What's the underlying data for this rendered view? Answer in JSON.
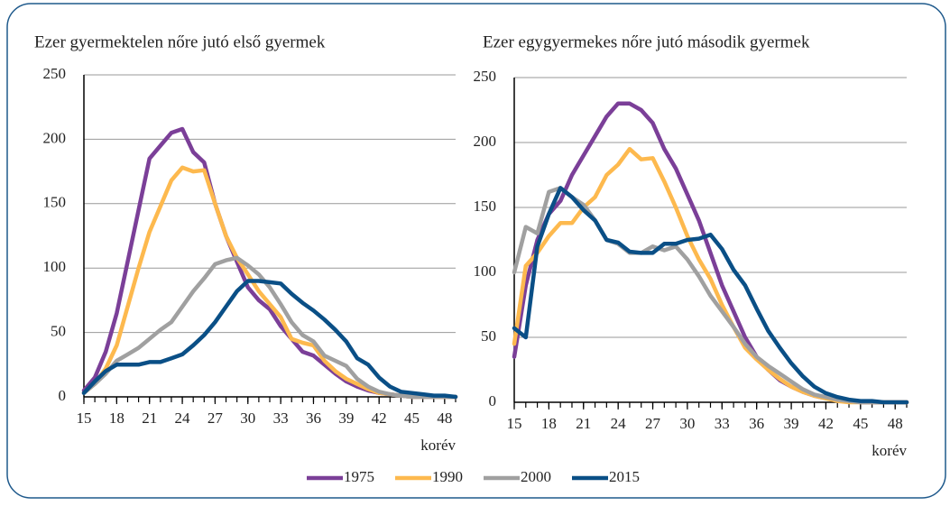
{
  "chart_data": [
    {
      "type": "line",
      "title": "Ezer gyermektelen nőre jutó első gyermek",
      "x_label": "korév",
      "x": [
        15,
        16,
        17,
        18,
        19,
        20,
        21,
        22,
        23,
        24,
        25,
        26,
        27,
        28,
        29,
        30,
        31,
        32,
        33,
        34,
        35,
        36,
        37,
        38,
        39,
        40,
        41,
        42,
        43,
        44,
        45,
        46,
        47,
        48,
        49
      ],
      "xlim": [
        15,
        49
      ],
      "xticks": [
        15,
        18,
        21,
        24,
        27,
        30,
        33,
        36,
        39,
        42,
        45,
        48
      ],
      "ylim": [
        0,
        250
      ],
      "yticks": [
        0,
        50,
        100,
        150,
        200,
        250
      ],
      "grid": true,
      "series": [
        {
          "name": "1975",
          "color": "#7b3f98",
          "values": [
            5,
            15,
            35,
            65,
            105,
            145,
            185,
            195,
            205,
            208,
            190,
            182,
            150,
            125,
            105,
            85,
            75,
            68,
            55,
            45,
            35,
            32,
            25,
            18,
            12,
            8,
            5,
            3,
            2,
            1,
            0,
            0,
            0,
            0,
            0
          ]
        },
        {
          "name": "1990",
          "color": "#fdb94e",
          "values": [
            3,
            10,
            22,
            40,
            70,
            100,
            128,
            148,
            168,
            178,
            175,
            176,
            150,
            125,
            108,
            95,
            82,
            72,
            62,
            45,
            42,
            40,
            28,
            20,
            14,
            10,
            6,
            3,
            2,
            1,
            0,
            0,
            0,
            0,
            0
          ]
        },
        {
          "name": "2000",
          "color": "#a0a0a0",
          "values": [
            3,
            10,
            18,
            28,
            33,
            38,
            45,
            52,
            58,
            70,
            82,
            92,
            103,
            106,
            108,
            102,
            95,
            85,
            72,
            58,
            48,
            43,
            32,
            28,
            24,
            14,
            8,
            4,
            2,
            1,
            0,
            0,
            0,
            0,
            0
          ]
        },
        {
          "name": "2015",
          "color": "#0a4f86",
          "values": [
            3,
            12,
            20,
            25,
            25,
            25,
            27,
            27,
            30,
            33,
            40,
            48,
            58,
            70,
            82,
            90,
            90,
            89,
            88,
            80,
            73,
            67,
            60,
            52,
            43,
            30,
            25,
            15,
            8,
            4,
            3,
            2,
            1,
            1,
            0
          ]
        }
      ]
    },
    {
      "type": "line",
      "title": "Ezer egygyermekes nőre jutó második gyermek",
      "x_label": "korév",
      "x": [
        15,
        16,
        17,
        18,
        19,
        20,
        21,
        22,
        23,
        24,
        25,
        26,
        27,
        28,
        29,
        30,
        31,
        32,
        33,
        34,
        35,
        36,
        37,
        38,
        39,
        40,
        41,
        42,
        43,
        44,
        45,
        46,
        47,
        48,
        49
      ],
      "xlim": [
        15,
        49
      ],
      "xticks": [
        15,
        18,
        21,
        24,
        27,
        30,
        33,
        36,
        39,
        42,
        45,
        48
      ],
      "ylim": [
        0,
        250
      ],
      "yticks": [
        0,
        50,
        100,
        150,
        200,
        250
      ],
      "grid": true,
      "series": [
        {
          "name": "1975",
          "color": "#7b3f98",
          "values": [
            35,
            90,
            125,
            145,
            155,
            175,
            190,
            205,
            220,
            230,
            230,
            225,
            215,
            195,
            180,
            160,
            140,
            115,
            90,
            70,
            50,
            35,
            25,
            17,
            12,
            8,
            5,
            3,
            2,
            1,
            0,
            0,
            0,
            0,
            0
          ]
        },
        {
          "name": "1990",
          "color": "#fdb94e",
          "values": [
            45,
            105,
            115,
            128,
            138,
            138,
            150,
            158,
            175,
            183,
            195,
            187,
            188,
            170,
            150,
            128,
            110,
            95,
            75,
            58,
            42,
            33,
            25,
            18,
            12,
            8,
            5,
            3,
            1,
            0,
            0,
            0,
            0,
            0,
            0
          ]
        },
        {
          "name": "2000",
          "color": "#a0a0a0",
          "values": [
            100,
            135,
            130,
            162,
            165,
            158,
            152,
            140,
            125,
            122,
            115,
            115,
            120,
            117,
            120,
            110,
            97,
            82,
            70,
            58,
            45,
            35,
            28,
            22,
            16,
            10,
            6,
            4,
            2,
            1,
            0,
            0,
            0,
            0,
            0
          ]
        },
        {
          "name": "2015",
          "color": "#0a4f86",
          "values": [
            57,
            50,
            120,
            145,
            165,
            158,
            148,
            140,
            125,
            123,
            116,
            115,
            115,
            122,
            122,
            125,
            126,
            129,
            118,
            102,
            90,
            72,
            55,
            42,
            30,
            20,
            12,
            7,
            4,
            2,
            1,
            1,
            0,
            0,
            0
          ]
        }
      ]
    }
  ]
}
